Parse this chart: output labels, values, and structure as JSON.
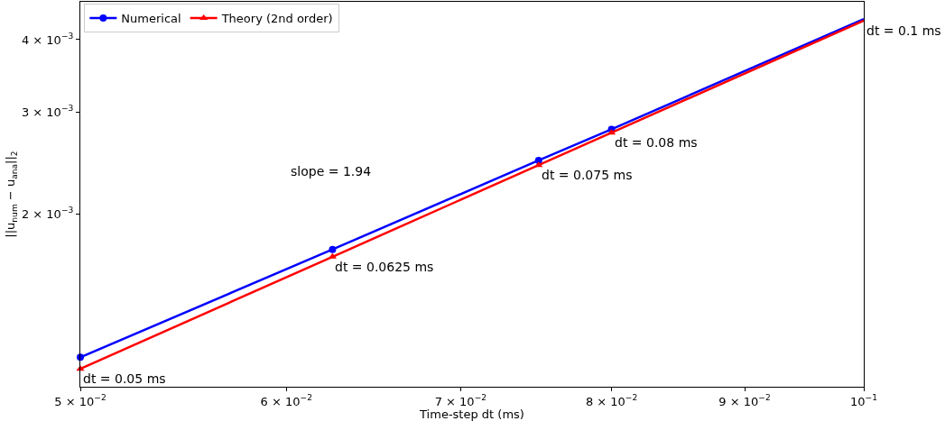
{
  "chart_data": {
    "type": "line",
    "xlabel": "Time-step dt (ms)",
    "ylabel": "||u$_{num}$ − u$_{ana}$||$_{2}$",
    "x": [
      0.05,
      0.0625,
      0.075,
      0.08,
      0.1
    ],
    "series": [
      {
        "name": "Numerical",
        "color": "#0000ff",
        "marker": "circle",
        "values": [
          0.00113,
          0.001736,
          0.002474,
          0.0028,
          0.00434
        ]
      },
      {
        "name": "Theory (2nd order)",
        "color": "#ff0000",
        "marker": "triangle",
        "values": [
          0.001079,
          0.001686,
          0.002428,
          0.002762,
          0.004316
        ]
      }
    ],
    "log": "xy",
    "xlim": [
      0.05,
      0.1
    ],
    "ylim": [
      0.001005,
      0.00465
    ],
    "xticks": [
      {
        "value": 0.05,
        "label": "5 × 10$^{−2}$"
      },
      {
        "value": 0.06,
        "label": "6 × 10$^{−2}$"
      },
      {
        "value": 0.07,
        "label": "7 × 10$^{−2}$"
      },
      {
        "value": 0.08,
        "label": "8 × 10$^{−2}$"
      },
      {
        "value": 0.09,
        "label": "9 × 10$^{−2}$"
      },
      {
        "value": 0.1,
        "label": "10$^{−1}$"
      }
    ],
    "yticks": [
      {
        "value": 0.002,
        "label": "2 × 10$^{−3}$"
      },
      {
        "value": 0.003,
        "label": "3 × 10$^{−3}$"
      },
      {
        "value": 0.004,
        "label": "4 × 10$^{−3}$"
      }
    ],
    "annotations": [
      {
        "text": "dt = 0.05 ms",
        "x": 0.05,
        "y": 0.001079
      },
      {
        "text": "dt = 0.0625 ms",
        "x": 0.0625,
        "y": 0.001686
      },
      {
        "text": "dt = 0.075 ms",
        "x": 0.075,
        "y": 0.002428
      },
      {
        "text": "dt = 0.08 ms",
        "x": 0.08,
        "y": 0.002762
      },
      {
        "text": "dt = 0.1 ms",
        "x": 0.1,
        "y": 0.004316
      },
      "slope = 1.94"
    ],
    "legend": "top left",
    "line_style": "solid"
  }
}
